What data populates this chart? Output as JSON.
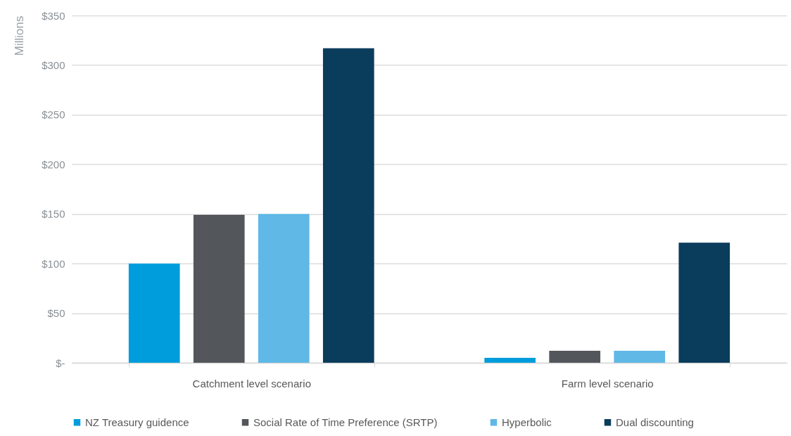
{
  "chart_data": {
    "type": "bar",
    "ylabel": "Millions",
    "categories": [
      "Catchment level scenario",
      "Farm level scenario"
    ],
    "series": [
      {
        "name": "NZ Treasury guidence",
        "color": "#009ddc",
        "values": [
          100,
          5
        ]
      },
      {
        "name": "Social Rate of Time Preference (SRTP)",
        "color": "#53565a",
        "values": [
          149,
          12
        ]
      },
      {
        "name": "Hyperbolic",
        "color": "#5fb8e6",
        "values": [
          150,
          12
        ]
      },
      {
        "name": "Dual discounting",
        "color": "#0a3c5c",
        "values": [
          317,
          121
        ]
      }
    ],
    "ylim": [
      0,
      350
    ],
    "yticks": [
      {
        "value": 0,
        "label": "$-"
      },
      {
        "value": 50,
        "label": "$50"
      },
      {
        "value": 100,
        "label": "$100"
      },
      {
        "value": 150,
        "label": "$150"
      },
      {
        "value": 200,
        "label": "$200"
      },
      {
        "value": 250,
        "label": "$250"
      },
      {
        "value": 300,
        "label": "$300"
      },
      {
        "value": 350,
        "label": "$350"
      }
    ],
    "grid": "y",
    "legend": "bottom"
  }
}
